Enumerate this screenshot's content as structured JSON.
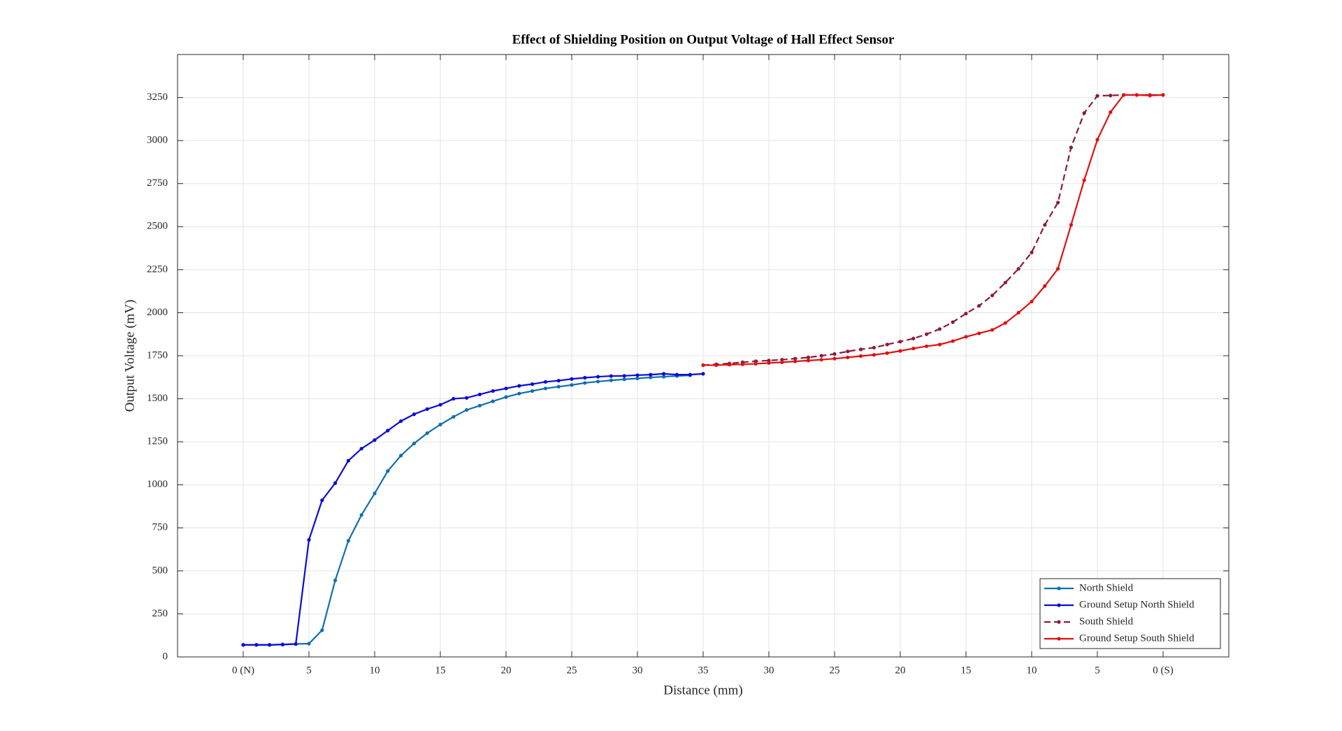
{
  "chart_data": {
    "type": "line",
    "title": "Effect of Shielding Position on Output Voltage of Hall Effect Sensor",
    "xlabel": "Distance (mm)",
    "ylabel": "Output Voltage (mV)",
    "xlim": [
      -5,
      75
    ],
    "ylim": [
      0,
      3500
    ],
    "xticks": [
      {
        "value": 0,
        "label": "0 (N)"
      },
      5,
      10,
      15,
      20,
      25,
      30,
      35,
      {
        "value": 40,
        "label": "30"
      },
      {
        "value": 45,
        "label": "25"
      },
      {
        "value": 50,
        "label": "20"
      },
      {
        "value": 55,
        "label": "15"
      },
      {
        "value": 60,
        "label": "10"
      },
      {
        "value": 65,
        "label": "5"
      },
      {
        "value": 70,
        "label": "0 (S)"
      }
    ],
    "yticks": [
      0,
      250,
      500,
      750,
      1000,
      1250,
      1500,
      1750,
      2000,
      2250,
      2500,
      2750,
      3000,
      3250
    ],
    "grid": true,
    "legend": "lower right",
    "series": [
      {
        "name": "North Shield",
        "color": "#0f6fae",
        "linestyle": "solid",
        "x": [
          0,
          1,
          2,
          3,
          4,
          5,
          6,
          7,
          8,
          9,
          10,
          11,
          12,
          13,
          14,
          15,
          16,
          17,
          18,
          19,
          20,
          21,
          22,
          23,
          24,
          25,
          26,
          27,
          28,
          29,
          30,
          31,
          32,
          33,
          34
        ],
        "values": [
          70,
          70,
          70,
          72,
          75,
          77,
          155,
          445,
          675,
          825,
          950,
          1080,
          1170,
          1240,
          1300,
          1350,
          1395,
          1435,
          1460,
          1485,
          1510,
          1530,
          1545,
          1560,
          1570,
          1580,
          1592,
          1600,
          1607,
          1613,
          1618,
          1624,
          1628,
          1632,
          1636
        ]
      },
      {
        "name": "Ground Setup North Shield",
        "color": "#0a0ad8",
        "linestyle": "solid",
        "x": [
          0,
          1,
          2,
          3,
          4,
          5,
          6,
          7,
          8,
          9,
          10,
          11,
          12,
          13,
          14,
          15,
          16,
          17,
          18,
          19,
          20,
          21,
          22,
          23,
          24,
          25,
          26,
          27,
          28,
          29,
          30,
          31,
          32,
          33,
          34,
          35
        ],
        "values": [
          70,
          70,
          70,
          72,
          75,
          680,
          910,
          1010,
          1140,
          1210,
          1260,
          1315,
          1370,
          1410,
          1440,
          1465,
          1500,
          1505,
          1525,
          1545,
          1560,
          1575,
          1585,
          1598,
          1605,
          1615,
          1622,
          1628,
          1632,
          1633,
          1637,
          1640,
          1645,
          1640,
          1640,
          1645
        ]
      },
      {
        "name": "South Shield",
        "color": "#8b1a3c",
        "linestyle": "dashed",
        "x": [
          35,
          36,
          37,
          38,
          39,
          40,
          41,
          42,
          43,
          44,
          45,
          46,
          47,
          48,
          49,
          50,
          51,
          52,
          53,
          54,
          55,
          56,
          57,
          58,
          59,
          60,
          61,
          62,
          63,
          64,
          65,
          66,
          67,
          68,
          69,
          70
        ],
        "values": [
          1695,
          1700,
          1705,
          1712,
          1718,
          1722,
          1727,
          1733,
          1740,
          1750,
          1760,
          1775,
          1787,
          1797,
          1815,
          1832,
          1850,
          1875,
          1905,
          1945,
          1995,
          2040,
          2100,
          2175,
          2255,
          2350,
          2510,
          2640,
          2960,
          3160,
          3260,
          3262,
          3265,
          3265,
          3265,
          3265
        ]
      },
      {
        "name": "Ground Setup South Shield",
        "color": "#e01010",
        "linestyle": "solid",
        "x": [
          35,
          36,
          37,
          38,
          39,
          40,
          41,
          42,
          43,
          44,
          45,
          46,
          47,
          48,
          49,
          50,
          51,
          52,
          53,
          54,
          55,
          56,
          57,
          58,
          59,
          60,
          61,
          62,
          63,
          64,
          65,
          66,
          67,
          68,
          69,
          70
        ],
        "values": [
          1695,
          1695,
          1698,
          1700,
          1703,
          1708,
          1712,
          1717,
          1722,
          1727,
          1733,
          1740,
          1748,
          1755,
          1765,
          1778,
          1792,
          1805,
          1815,
          1835,
          1860,
          1880,
          1900,
          1940,
          2000,
          2065,
          2155,
          2255,
          2510,
          2770,
          3005,
          3165,
          3265,
          3265,
          3262,
          3265
        ]
      }
    ]
  }
}
